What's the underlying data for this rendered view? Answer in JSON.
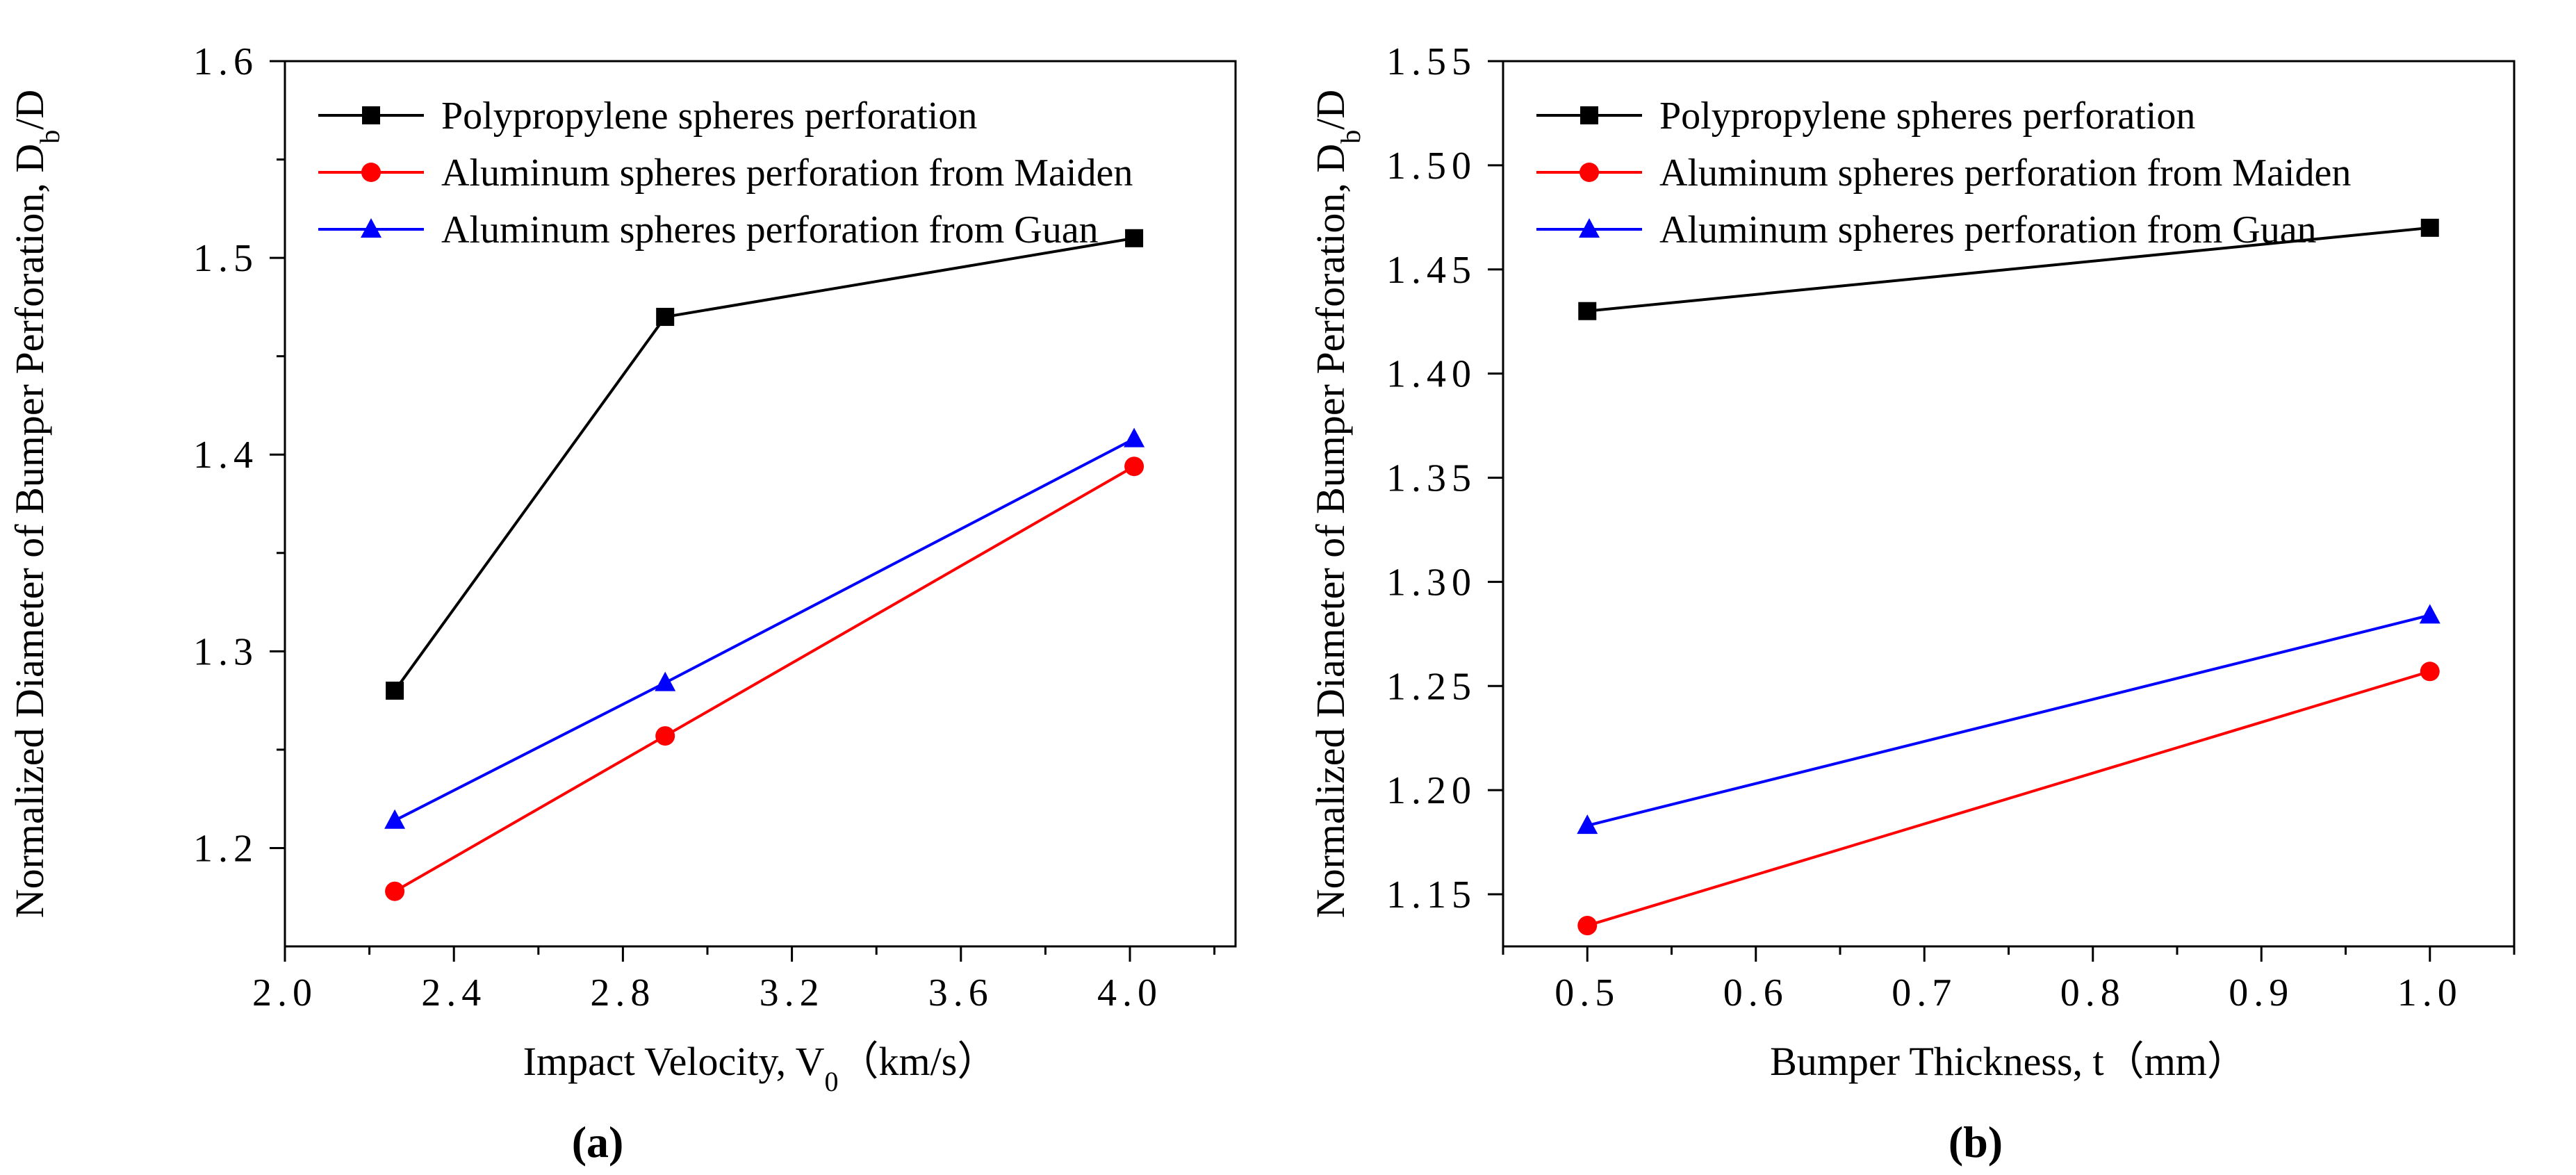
{
  "chart_data": [
    {
      "type": "line",
      "panel_label": "(a)",
      "title": "",
      "xlabel": "Impact Velocity, V",
      "xlabel_subscript": "0",
      "xlabel_unit": "（km/s）",
      "ylabel": "Normalized Diameter of Bumper Perforation, D",
      "ylabel_subscript": "b",
      "ylabel_suffix": "/D",
      "xlim": [
        2.0,
        4.25
      ],
      "ylim": [
        1.15,
        1.6
      ],
      "xticks": [
        "2.0",
        "2.4",
        "2.8",
        "3.2",
        "3.6",
        "4.0"
      ],
      "yticks": [
        "1.2",
        "1.3",
        "1.4",
        "1.5",
        "1.6"
      ],
      "legend_position": "top-left",
      "series": [
        {
          "name": "Polypropylene spheres perforation",
          "color": "#000000",
          "marker": "square",
          "x": [
            2.26,
            2.9,
            4.01
          ],
          "y": [
            1.28,
            1.47,
            1.51
          ]
        },
        {
          "name": "Aluminum spheres perforation from Maiden",
          "color": "#ff0000",
          "marker": "circle",
          "x": [
            2.26,
            2.9,
            4.01
          ],
          "y": [
            1.178,
            1.257,
            1.394
          ]
        },
        {
          "name": "Aluminum spheres perforation from Guan",
          "color": "#0000ff",
          "marker": "triangle",
          "x": [
            2.26,
            2.9,
            4.01
          ],
          "y": [
            1.214,
            1.284,
            1.408
          ]
        }
      ]
    },
    {
      "type": "line",
      "panel_label": "(b)",
      "title": "",
      "xlabel": "Bumper Thickness, t",
      "xlabel_subscript": "",
      "xlabel_unit": "（mm）",
      "ylabel": "Normalized Diameter of Bumper Perforation, D",
      "ylabel_subscript": "b",
      "ylabel_suffix": "/D",
      "xlim": [
        0.45,
        1.05
      ],
      "ylim": [
        1.125,
        1.55
      ],
      "xticks": [
        "0.5",
        "0.6",
        "0.7",
        "0.8",
        "0.9",
        "1.0"
      ],
      "yticks": [
        "1.15",
        "1.20",
        "1.25",
        "1.30",
        "1.35",
        "1.40",
        "1.45",
        "1.50",
        "1.55"
      ],
      "legend_position": "top-left",
      "series": [
        {
          "name": "Polypropylene spheres perforation",
          "color": "#000000",
          "marker": "square",
          "x": [
            0.5,
            1.0
          ],
          "y": [
            1.43,
            1.47
          ]
        },
        {
          "name": "Aluminum spheres perforation from Maiden",
          "color": "#ff0000",
          "marker": "circle",
          "x": [
            0.5,
            1.0
          ],
          "y": [
            1.135,
            1.257
          ]
        },
        {
          "name": "Aluminum spheres perforation from Guan",
          "color": "#0000ff",
          "marker": "triangle",
          "x": [
            0.5,
            1.0
          ],
          "y": [
            1.183,
            1.284
          ]
        }
      ]
    }
  ]
}
